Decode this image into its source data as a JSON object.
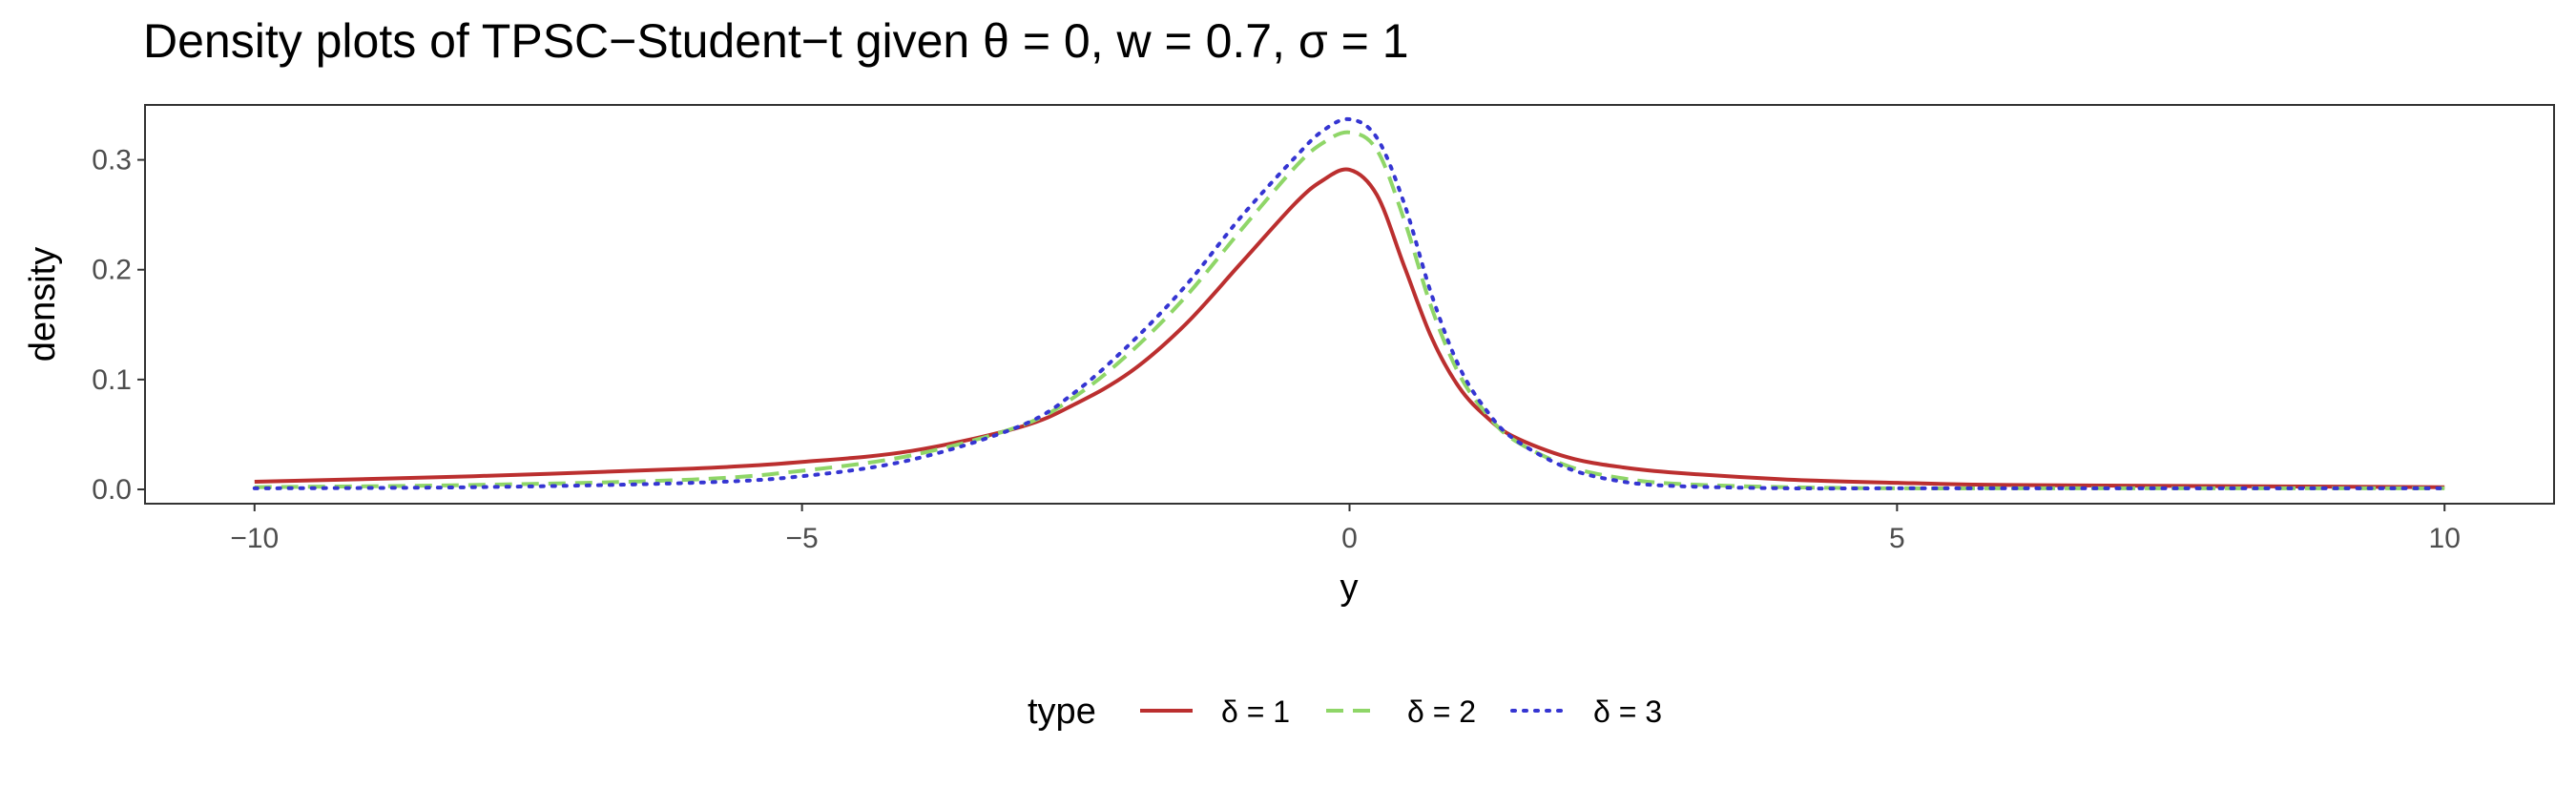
{
  "chart_data": {
    "type": "line",
    "title": "Density plots of TPSC−Student−t given θ = 0, w = 0.7, σ = 1",
    "xlabel": "y",
    "ylabel": "density",
    "xlim": [
      -11.0,
      11.0
    ],
    "ylim": [
      -0.013,
      0.35
    ],
    "x_ticks": [
      -10,
      -5,
      0,
      5,
      10
    ],
    "x_tick_labels": [
      "−10",
      "−5",
      "0",
      "5",
      "10"
    ],
    "y_ticks": [
      0.0,
      0.1,
      0.2,
      0.3
    ],
    "y_tick_labels": [
      "0.0",
      "0.1",
      "0.2",
      "0.3"
    ],
    "grid": false,
    "legend": {
      "title": "type",
      "position": "bottom"
    },
    "x": [
      -10,
      -8,
      -6,
      -5,
      -4,
      -3,
      -2.5,
      -2,
      -1.5,
      -1,
      -0.5,
      -0.25,
      0,
      0.25,
      0.5,
      0.75,
      1,
      1.25,
      1.5,
      2,
      2.5,
      3,
      4,
      5,
      6,
      8,
      10
    ],
    "series": [
      {
        "name": "δ = 1",
        "color": "#bb2f2f",
        "dash": "solid",
        "values": [
          0.007,
          0.012,
          0.019,
          0.025,
          0.035,
          0.057,
          0.078,
          0.107,
          0.15,
          0.205,
          0.26,
          0.281,
          0.291,
          0.268,
          0.203,
          0.138,
          0.093,
          0.066,
          0.048,
          0.029,
          0.02,
          0.015,
          0.009,
          0.006,
          0.004,
          0.003,
          0.002
        ]
      },
      {
        "name": "δ = 2",
        "color": "#8fd668",
        "dash": "dashed",
        "values": [
          0.002,
          0.004,
          0.009,
          0.017,
          0.031,
          0.058,
          0.085,
          0.125,
          0.175,
          0.235,
          0.293,
          0.315,
          0.325,
          0.309,
          0.245,
          0.165,
          0.105,
          0.069,
          0.045,
          0.021,
          0.01,
          0.005,
          0.002,
          0.001,
          0.001,
          0.001,
          0.001
        ]
      },
      {
        "name": "δ = 3",
        "color": "#3535d2",
        "dash": "dotted",
        "values": [
          0.001,
          0.002,
          0.006,
          0.012,
          0.027,
          0.058,
          0.089,
          0.133,
          0.185,
          0.247,
          0.302,
          0.326,
          0.337,
          0.32,
          0.26,
          0.177,
          0.112,
          0.072,
          0.046,
          0.019,
          0.007,
          0.003,
          0.001,
          0.001,
          0.001,
          0.001,
          0.001
        ]
      }
    ]
  }
}
